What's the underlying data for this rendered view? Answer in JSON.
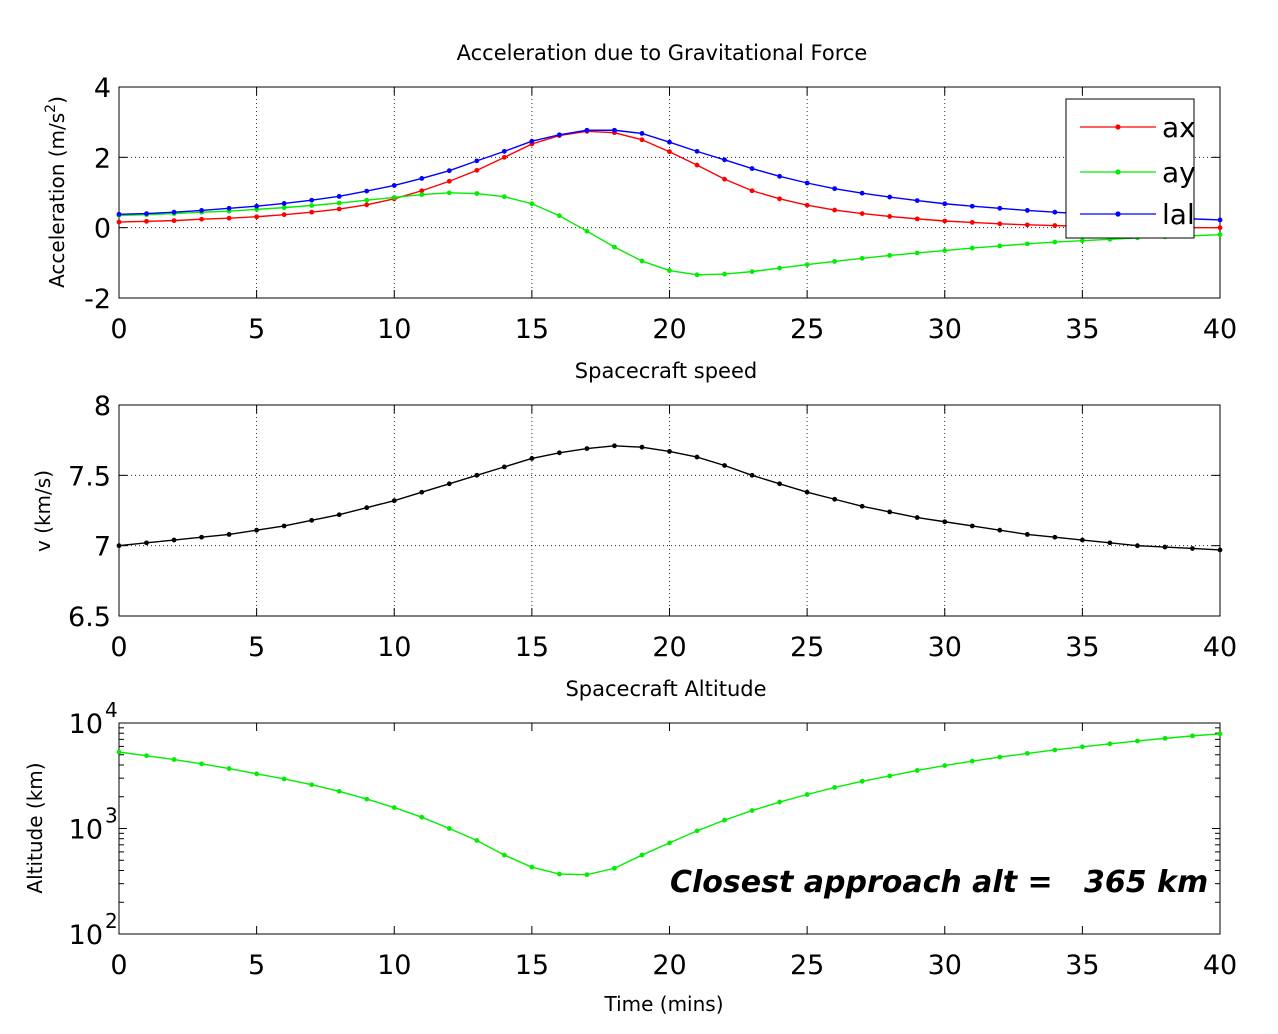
{
  "chart_data": [
    {
      "type": "line",
      "title": "Acceleration due to Gravitational Force",
      "ylabel": "Acceleration (m/s",
      "ylabel_sup": "2",
      "ylabel_close": ")",
      "xlabel": "",
      "xlim": [
        0,
        40
      ],
      "ylim": [
        -2,
        4
      ],
      "xticks": [
        0,
        5,
        10,
        15,
        20,
        25,
        30,
        35,
        40
      ],
      "yticks": [
        -2,
        0,
        2,
        4
      ],
      "grid": true,
      "legend_position": "top-right",
      "x": [
        0,
        1,
        2,
        3,
        4,
        5,
        6,
        7,
        8,
        9,
        10,
        11,
        12,
        13,
        14,
        15,
        16,
        17,
        18,
        19,
        20,
        21,
        22,
        23,
        24,
        25,
        26,
        27,
        28,
        29,
        30,
        31,
        32,
        33,
        34,
        35,
        36,
        37,
        38,
        39,
        40
      ],
      "series": [
        {
          "name": "ax",
          "color": "#ff0000",
          "values": [
            0.16,
            0.18,
            0.2,
            0.24,
            0.27,
            0.31,
            0.37,
            0.44,
            0.53,
            0.65,
            0.82,
            1.05,
            1.32,
            1.63,
            2.0,
            2.38,
            2.62,
            2.74,
            2.7,
            2.5,
            2.16,
            1.78,
            1.38,
            1.05,
            0.82,
            0.64,
            0.5,
            0.4,
            0.32,
            0.25,
            0.19,
            0.15,
            0.11,
            0.08,
            0.06,
            0.04,
            0.02,
            0.01,
            0.0,
            0.0,
            0.0
          ]
        },
        {
          "name": "ay",
          "color": "#00ee00",
          "values": [
            0.35,
            0.37,
            0.4,
            0.44,
            0.47,
            0.52,
            0.57,
            0.63,
            0.7,
            0.78,
            0.86,
            0.94,
            0.99,
            0.97,
            0.88,
            0.68,
            0.34,
            -0.1,
            -0.55,
            -0.95,
            -1.22,
            -1.34,
            -1.32,
            -1.25,
            -1.15,
            -1.05,
            -0.96,
            -0.87,
            -0.79,
            -0.72,
            -0.65,
            -0.58,
            -0.52,
            -0.46,
            -0.41,
            -0.37,
            -0.33,
            -0.29,
            -0.26,
            -0.23,
            -0.2
          ]
        },
        {
          "name": "lal",
          "color": "#0000ff",
          "values": [
            0.38,
            0.4,
            0.44,
            0.49,
            0.55,
            0.61,
            0.69,
            0.78,
            0.89,
            1.04,
            1.2,
            1.4,
            1.62,
            1.9,
            2.17,
            2.46,
            2.64,
            2.77,
            2.77,
            2.68,
            2.43,
            2.17,
            1.93,
            1.68,
            1.46,
            1.27,
            1.11,
            0.98,
            0.87,
            0.77,
            0.68,
            0.61,
            0.55,
            0.49,
            0.44,
            0.39,
            0.35,
            0.31,
            0.28,
            0.25,
            0.22
          ]
        }
      ]
    },
    {
      "type": "line",
      "title": "Spacecraft speed",
      "ylabel": "v (km/s)",
      "xlabel": "",
      "xlim": [
        0,
        40
      ],
      "ylim": [
        6.5,
        8
      ],
      "xticks": [
        0,
        5,
        10,
        15,
        20,
        25,
        30,
        35,
        40
      ],
      "yticks": [
        6.5,
        7,
        7.5,
        8
      ],
      "ytick_labels": [
        "6.5",
        "7",
        "7.5",
        "8"
      ],
      "grid": true,
      "x": [
        0,
        1,
        2,
        3,
        4,
        5,
        6,
        7,
        8,
        9,
        10,
        11,
        12,
        13,
        14,
        15,
        16,
        17,
        18,
        19,
        20,
        21,
        22,
        23,
        24,
        25,
        26,
        27,
        28,
        29,
        30,
        31,
        32,
        33,
        34,
        35,
        36,
        37,
        38,
        39,
        40
      ],
      "series": [
        {
          "color": "#000000",
          "values": [
            7.0,
            7.02,
            7.04,
            7.06,
            7.08,
            7.11,
            7.14,
            7.18,
            7.22,
            7.27,
            7.32,
            7.38,
            7.44,
            7.5,
            7.56,
            7.62,
            7.66,
            7.69,
            7.71,
            7.7,
            7.67,
            7.63,
            7.57,
            7.5,
            7.44,
            7.38,
            7.33,
            7.28,
            7.24,
            7.2,
            7.17,
            7.14,
            7.11,
            7.08,
            7.06,
            7.04,
            7.02,
            7.0,
            6.99,
            6.98,
            6.97
          ]
        }
      ]
    },
    {
      "type": "line",
      "title": "Spacecraft Altitude",
      "ylabel": "Altitude (km)",
      "xlabel": "Time (mins)",
      "yscale": "log",
      "xlim": [
        0,
        40
      ],
      "ylim": [
        100,
        10000
      ],
      "xticks": [
        0,
        5,
        10,
        15,
        20,
        25,
        30,
        35,
        40
      ],
      "yticks": [
        100,
        1000,
        10000
      ],
      "ytick_base": "10",
      "ytick_exponents": [
        "2",
        "3",
        "4"
      ],
      "grid": false,
      "annotation": "Closest approach alt =   365 km",
      "x": [
        0,
        1,
        2,
        3,
        4,
        5,
        6,
        7,
        8,
        9,
        10,
        11,
        12,
        13,
        14,
        15,
        16,
        17,
        18,
        19,
        20,
        21,
        22,
        23,
        24,
        25,
        26,
        27,
        28,
        29,
        30,
        31,
        32,
        33,
        34,
        35,
        36,
        37,
        38,
        39,
        40
      ],
      "series": [
        {
          "color": "#00ee00",
          "values": [
            5300,
            4900,
            4500,
            4100,
            3700,
            3300,
            2950,
            2600,
            2250,
            1900,
            1580,
            1280,
            1000,
            770,
            560,
            430,
            370,
            365,
            420,
            560,
            730,
            950,
            1200,
            1480,
            1780,
            2100,
            2450,
            2800,
            3150,
            3550,
            3950,
            4350,
            4750,
            5150,
            5550,
            5950,
            6350,
            6750,
            7150,
            7550,
            7900
          ]
        }
      ]
    }
  ]
}
